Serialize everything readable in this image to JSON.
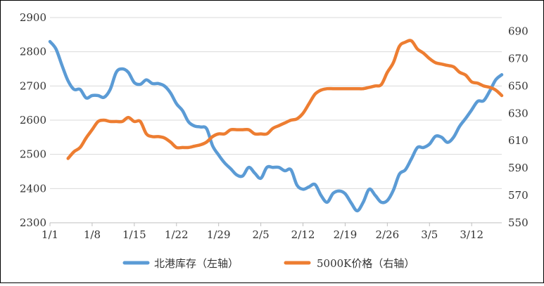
{
  "chart_data": {
    "type": "line",
    "title": "",
    "xlabel": "",
    "x_ticks": [
      "1/1",
      "1/8",
      "1/15",
      "1/22",
      "1/29",
      "2/5",
      "2/12",
      "2/19",
      "2/26",
      "3/5",
      "3/12"
    ],
    "left_axis": {
      "ylim": [
        2300,
        2900
      ],
      "ticks": [
        2300,
        2400,
        2500,
        2600,
        2700,
        2800,
        2900
      ]
    },
    "right_axis": {
      "ylim": [
        550,
        700
      ],
      "ticks": [
        550,
        570,
        590,
        610,
        630,
        650,
        670,
        690
      ]
    },
    "grid": "horizontal",
    "legend_position": "bottom",
    "series": [
      {
        "name": "北港库存（左轴）",
        "axis": "left",
        "color": "#5b9bd5",
        "points": [
          [
            0,
            2830
          ],
          [
            1,
            2808
          ],
          [
            2,
            2760
          ],
          [
            3,
            2715
          ],
          [
            4,
            2690
          ],
          [
            5,
            2690
          ],
          [
            6,
            2665
          ],
          [
            7,
            2672
          ],
          [
            8,
            2672
          ],
          [
            9,
            2667
          ],
          [
            10,
            2690
          ],
          [
            11,
            2740
          ],
          [
            12,
            2750
          ],
          [
            13,
            2740
          ],
          [
            14,
            2710
          ],
          [
            15,
            2705
          ],
          [
            16,
            2718
          ],
          [
            17,
            2707
          ],
          [
            18,
            2707
          ],
          [
            19,
            2700
          ],
          [
            20,
            2680
          ],
          [
            21,
            2648
          ],
          [
            22,
            2628
          ],
          [
            23,
            2595
          ],
          [
            24,
            2583
          ],
          [
            25,
            2580
          ],
          [
            26,
            2575
          ],
          [
            27,
            2525
          ],
          [
            28,
            2498
          ],
          [
            29,
            2475
          ],
          [
            30,
            2458
          ],
          [
            31,
            2440
          ],
          [
            32,
            2437
          ],
          [
            33,
            2462
          ],
          [
            34,
            2445
          ],
          [
            35,
            2430
          ],
          [
            36,
            2462
          ],
          [
            37,
            2462
          ],
          [
            38,
            2462
          ],
          [
            39,
            2452
          ],
          [
            40,
            2455
          ],
          [
            41,
            2410
          ],
          [
            42,
            2398
          ],
          [
            43,
            2405
          ],
          [
            44,
            2412
          ],
          [
            45,
            2380
          ],
          [
            46,
            2360
          ],
          [
            47,
            2386
          ],
          [
            48,
            2393
          ],
          [
            49,
            2385
          ],
          [
            50,
            2358
          ],
          [
            51,
            2335
          ],
          [
            52,
            2360
          ],
          [
            53,
            2398
          ],
          [
            54,
            2380
          ],
          [
            55,
            2360
          ],
          [
            56,
            2365
          ],
          [
            57,
            2395
          ],
          [
            58,
            2442
          ],
          [
            59,
            2455
          ],
          [
            60,
            2487
          ],
          [
            61,
            2520
          ],
          [
            62,
            2520
          ],
          [
            63,
            2530
          ],
          [
            64,
            2553
          ],
          [
            65,
            2550
          ],
          [
            66,
            2535
          ],
          [
            67,
            2550
          ],
          [
            68,
            2582
          ],
          [
            69,
            2605
          ],
          [
            70,
            2630
          ],
          [
            71,
            2655
          ],
          [
            72,
            2657
          ],
          [
            73,
            2685
          ],
          [
            74,
            2718
          ],
          [
            75,
            2733
          ]
        ]
      },
      {
        "name": "5000K价格（右轴）",
        "axis": "right",
        "color": "#ed7d31",
        "points": [
          [
            3,
            597
          ],
          [
            4,
            602
          ],
          [
            5,
            605
          ],
          [
            6,
            612
          ],
          [
            7,
            618
          ],
          [
            8,
            624
          ],
          [
            9,
            625
          ],
          [
            10,
            624
          ],
          [
            11,
            624
          ],
          [
            12,
            624
          ],
          [
            13,
            627
          ],
          [
            14,
            624
          ],
          [
            15,
            624
          ],
          [
            16,
            615
          ],
          [
            17,
            613
          ],
          [
            18,
            613
          ],
          [
            19,
            612
          ],
          [
            20,
            609
          ],
          [
            21,
            605
          ],
          [
            22,
            605
          ],
          [
            23,
            605
          ],
          [
            24,
            606
          ],
          [
            25,
            607
          ],
          [
            26,
            609
          ],
          [
            27,
            613
          ],
          [
            28,
            615
          ],
          [
            29,
            615
          ],
          [
            30,
            618
          ],
          [
            31,
            618
          ],
          [
            32,
            618
          ],
          [
            33,
            618
          ],
          [
            34,
            615
          ],
          [
            35,
            615
          ],
          [
            36,
            615
          ],
          [
            37,
            619
          ],
          [
            38,
            621
          ],
          [
            39,
            623
          ],
          [
            40,
            625
          ],
          [
            41,
            626
          ],
          [
            42,
            630
          ],
          [
            43,
            637
          ],
          [
            44,
            644
          ],
          [
            45,
            647
          ],
          [
            46,
            648
          ],
          [
            47,
            648
          ],
          [
            48,
            648
          ],
          [
            49,
            648
          ],
          [
            50,
            648
          ],
          [
            51,
            648
          ],
          [
            52,
            648
          ],
          [
            53,
            649
          ],
          [
            54,
            650
          ],
          [
            55,
            651
          ],
          [
            56,
            660
          ],
          [
            57,
            667
          ],
          [
            58,
            679
          ],
          [
            59,
            682
          ],
          [
            60,
            683
          ],
          [
            61,
            677
          ],
          [
            62,
            674
          ],
          [
            63,
            670
          ],
          [
            64,
            667
          ],
          [
            65,
            666
          ],
          [
            66,
            665
          ],
          [
            67,
            664
          ],
          [
            68,
            660
          ],
          [
            69,
            658
          ],
          [
            70,
            653
          ],
          [
            71,
            652
          ],
          [
            72,
            650
          ],
          [
            73,
            649
          ],
          [
            74,
            647
          ],
          [
            75,
            643
          ]
        ]
      }
    ]
  }
}
